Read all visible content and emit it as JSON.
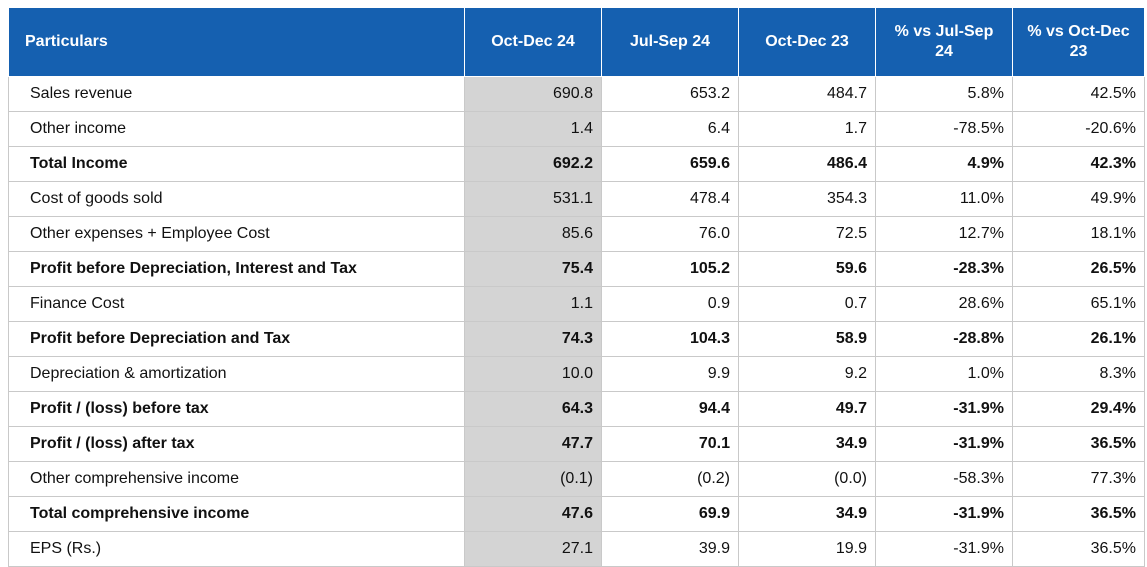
{
  "header": {
    "particulars": "Particulars",
    "col1": "Oct-Dec 24",
    "col2": "Jul-Sep 24",
    "col3": "Oct-Dec 23",
    "col4": "% vs Jul-Sep 24",
    "col5": "% vs Oct-Dec 23"
  },
  "colors": {
    "header_bg": "#1560b0",
    "highlight_col": "#d4d4d4",
    "border": "#c9c9c9"
  },
  "rows": [
    {
      "label": "Sales revenue",
      "v1": "690.8",
      "v2": "653.2",
      "v3": "484.7",
      "v4": "5.8%",
      "v5": "42.5%",
      "bold": false
    },
    {
      "label": "Other income",
      "v1": "1.4",
      "v2": "6.4",
      "v3": "1.7",
      "v4": "-78.5%",
      "v5": "-20.6%",
      "bold": false
    },
    {
      "label": "Total Income",
      "v1": "692.2",
      "v2": "659.6",
      "v3": "486.4",
      "v4": "4.9%",
      "v5": "42.3%",
      "bold": true
    },
    {
      "label": "Cost of goods sold",
      "v1": "531.1",
      "v2": "478.4",
      "v3": "354.3",
      "v4": "11.0%",
      "v5": "49.9%",
      "bold": false
    },
    {
      "label": "Other expenses + Employee Cost",
      "v1": "85.6",
      "v2": "76.0",
      "v3": "72.5",
      "v4": "12.7%",
      "v5": "18.1%",
      "bold": false
    },
    {
      "label": "Profit before Depreciation, Interest and Tax",
      "v1": "75.4",
      "v2": "105.2",
      "v3": "59.6",
      "v4": "-28.3%",
      "v5": "26.5%",
      "bold": true
    },
    {
      "label": "Finance Cost",
      "v1": "1.1",
      "v2": "0.9",
      "v3": "0.7",
      "v4": "28.6%",
      "v5": "65.1%",
      "bold": false
    },
    {
      "label": "Profit before Depreciation and Tax",
      "v1": "74.3",
      "v2": "104.3",
      "v3": "58.9",
      "v4": "-28.8%",
      "v5": "26.1%",
      "bold": true
    },
    {
      "label": "Depreciation & amortization",
      "v1": "10.0",
      "v2": "9.9",
      "v3": "9.2",
      "v4": "1.0%",
      "v5": "8.3%",
      "bold": false
    },
    {
      "label": "Profit / (loss) before tax",
      "v1": "64.3",
      "v2": "94.4",
      "v3": "49.7",
      "v4": "-31.9%",
      "v5": "29.4%",
      "bold": true
    },
    {
      "label": "Profit / (loss) after tax",
      "v1": "47.7",
      "v2": "70.1",
      "v3": "34.9",
      "v4": "-31.9%",
      "v5": "36.5%",
      "bold": true
    },
    {
      "label": "Other comprehensive income",
      "v1": "(0.1)",
      "v2": "(0.2)",
      "v3": "(0.0)",
      "v4": "-58.3%",
      "v5": "77.3%",
      "bold": false
    },
    {
      "label": "Total comprehensive income",
      "v1": "47.6",
      "v2": "69.9",
      "v3": "34.9",
      "v4": "-31.9%",
      "v5": "36.5%",
      "bold": true
    },
    {
      "label": "EPS (Rs.)",
      "v1": "27.1",
      "v2": "39.9",
      "v3": "19.9",
      "v4": "-31.9%",
      "v5": "36.5%",
      "bold": false
    }
  ]
}
